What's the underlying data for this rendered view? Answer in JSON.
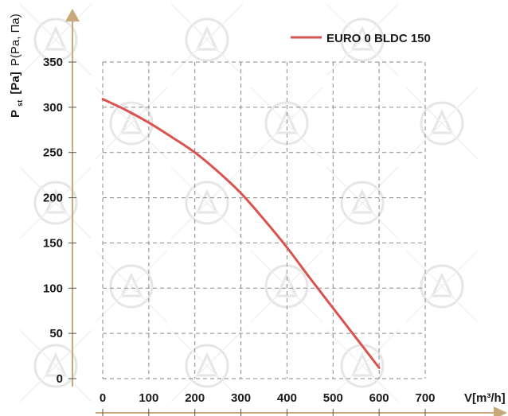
{
  "chart_data": {
    "type": "line",
    "title": "",
    "xlabel": "V[m³/h]",
    "ylabel_main": "P",
    "ylabel_sub": "st",
    "ylabel_unit": "[Pa]",
    "ylabel_alt": "P(Pa, Па)",
    "xlim": [
      0,
      700
    ],
    "ylim": [
      0,
      350
    ],
    "x_ticks": [
      0,
      100,
      200,
      300,
      400,
      500,
      600,
      700
    ],
    "y_ticks": [
      0,
      50,
      100,
      150,
      200,
      250,
      300,
      350
    ],
    "grid": true,
    "legend_position": "top-right",
    "series": [
      {
        "name": "EURO 0 BLDC 150",
        "color": "#d9534f",
        "x": [
          0,
          50,
          100,
          150,
          200,
          250,
          300,
          350,
          400,
          450,
          500,
          550,
          600
        ],
        "y": [
          309,
          297,
          283,
          267,
          250,
          229,
          205,
          176,
          145,
          111,
          78,
          45,
          12
        ]
      }
    ]
  }
}
